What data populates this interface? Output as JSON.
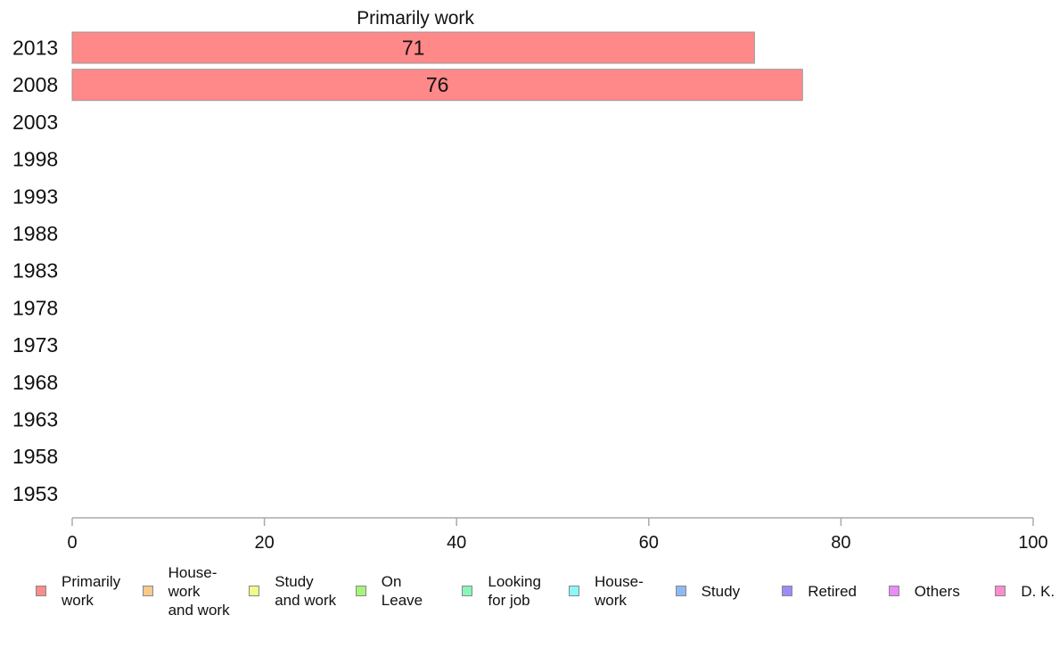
{
  "chart_data": {
    "type": "bar",
    "orientation": "horizontal",
    "title": "Primarily work",
    "categories": [
      "2013",
      "2008",
      "2003",
      "1998",
      "1993",
      "1988",
      "1983",
      "1978",
      "1973",
      "1968",
      "1963",
      "1958",
      "1953"
    ],
    "series": [
      {
        "name": "Primarily work",
        "values": [
          71,
          76,
          null,
          null,
          null,
          null,
          null,
          null,
          null,
          null,
          null,
          null,
          null
        ]
      }
    ],
    "data_labels": [
      "71",
      "76"
    ],
    "xlim": [
      0,
      100
    ],
    "xticks": [
      "0",
      "20",
      "40",
      "60",
      "80",
      "100"
    ],
    "xlabel": "",
    "ylabel": "",
    "grid": false,
    "bar_color": "#ff8888",
    "legend_position": "bottom",
    "legend": [
      {
        "label": "Primarily\nwork",
        "color": "#ff8c8c"
      },
      {
        "label": "House-\nwork\nand work",
        "color": "#f9c98a"
      },
      {
        "label": "Study\nand work",
        "color": "#f0fb8a"
      },
      {
        "label": "On\nLeave",
        "color": "#a6f57a"
      },
      {
        "label": "Looking\nfor job",
        "color": "#8af5b8"
      },
      {
        "label": "House-\nwork",
        "color": "#8cf7f7"
      },
      {
        "label": "Study",
        "color": "#8cbaf7"
      },
      {
        "label": "Retired",
        "color": "#9d8cf7"
      },
      {
        "label": "Others",
        "color": "#e88cf7"
      },
      {
        "label": "D. K.",
        "color": "#ff8cd0"
      }
    ]
  }
}
